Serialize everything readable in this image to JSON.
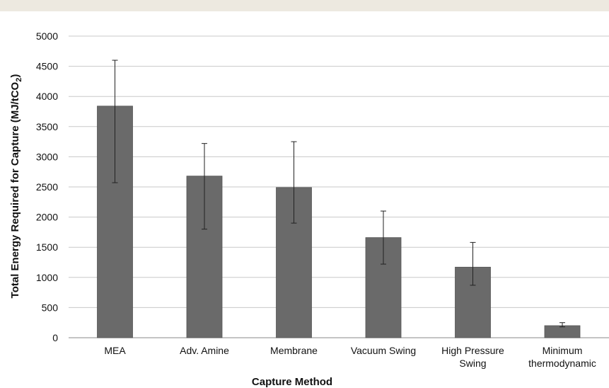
{
  "chart_data": {
    "type": "bar",
    "title": "",
    "xlabel": "Capture Method",
    "ylabel": "Total Energy Required for Capture (MJ/tCO",
    "ylabel_subscript": "2",
    "ylabel_suffix": ")",
    "categories": [
      [
        "MEA"
      ],
      [
        "Adv. Amine"
      ],
      [
        "Membrane"
      ],
      [
        "Vacuum Swing"
      ],
      [
        "High Pressure",
        "Swing"
      ],
      [
        "Minimum",
        "thermodynamic"
      ]
    ],
    "values": [
      3840,
      2680,
      2490,
      1660,
      1170,
      200
    ],
    "error_low": [
      2570,
      1800,
      1900,
      1220,
      870,
      180
    ],
    "error_high": [
      4600,
      3220,
      3250,
      2100,
      1580,
      250
    ],
    "yticks": [
      0,
      500,
      1000,
      1500,
      2000,
      2500,
      3000,
      3500,
      4000,
      4500,
      5000
    ],
    "ylim": [
      0,
      5000
    ],
    "grid": true,
    "legend": "none",
    "colors": {
      "bar": "#6a6a6a",
      "bar_stroke": "#555555",
      "grid": "#c8c8c8",
      "error": "#222222",
      "top_rule": "#ede9e0"
    }
  }
}
